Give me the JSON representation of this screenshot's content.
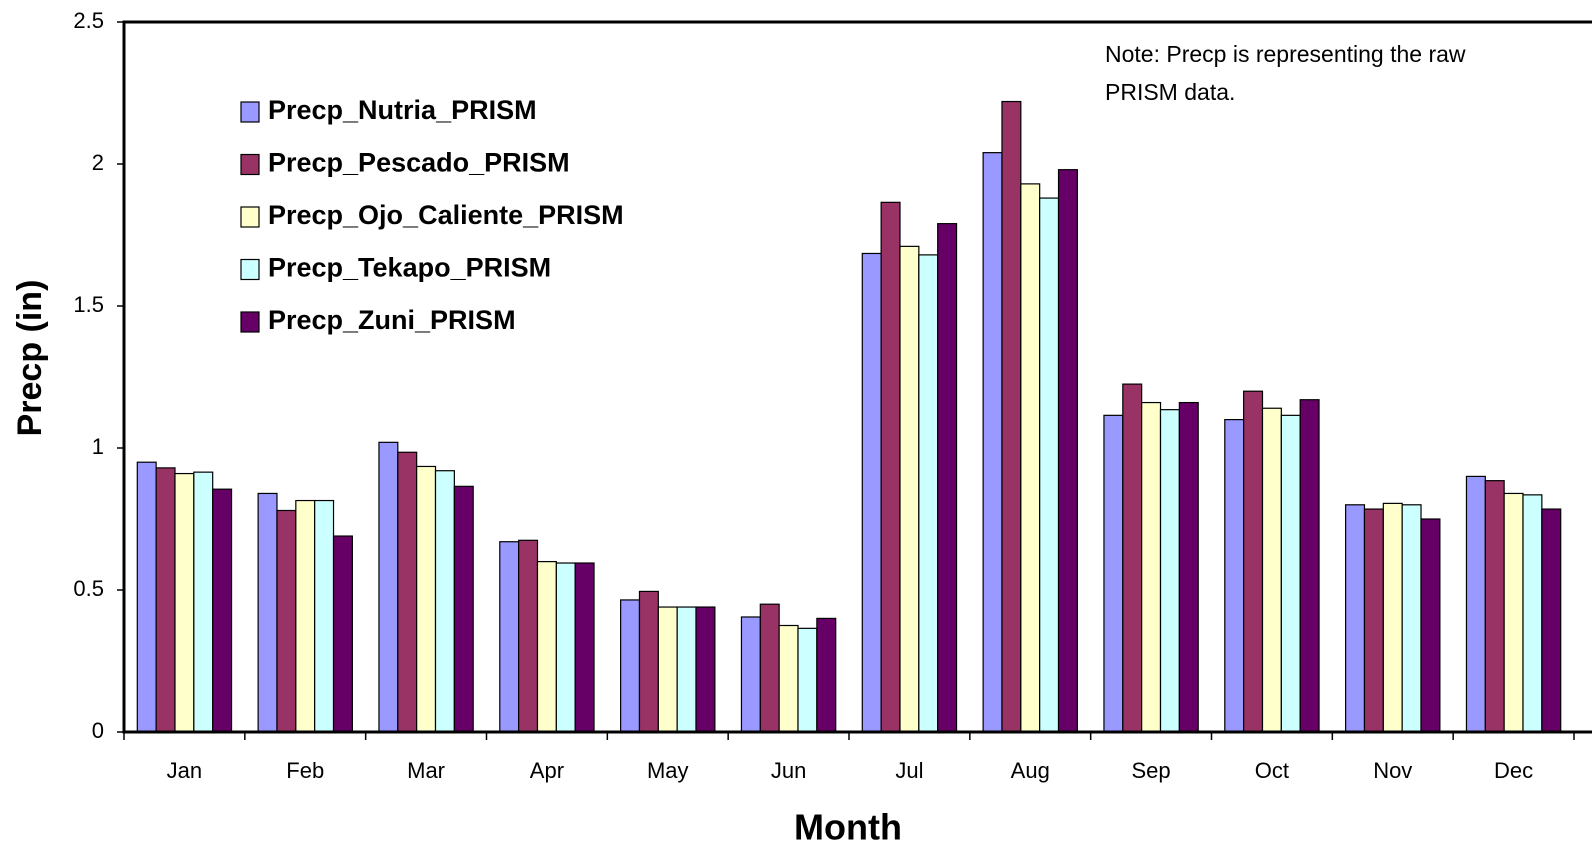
{
  "chart_data": {
    "type": "bar",
    "note": [
      "Note: Precp is representing the raw",
      "PRISM data."
    ],
    "x_label": "Month",
    "y_label": "Precp (in)",
    "categories": [
      "Jan",
      "Feb",
      "Mar",
      "Apr",
      "May",
      "Jun",
      "Jul",
      "Aug",
      "Sep",
      "Oct",
      "Nov",
      "Dec"
    ],
    "series": [
      {
        "name": "Precp_Nutria_PRISM",
        "color": "#9999ff",
        "values": [
          0.95,
          0.84,
          1.02,
          0.67,
          0.465,
          0.405,
          1.685,
          2.04,
          1.115,
          1.1,
          0.8,
          0.9
        ]
      },
      {
        "name": "Precp_Pescado_PRISM",
        "color": "#993366",
        "values": [
          0.93,
          0.78,
          0.985,
          0.675,
          0.495,
          0.45,
          1.865,
          2.22,
          1.225,
          1.2,
          0.785,
          0.885
        ]
      },
      {
        "name": "Precp_Ojo_Caliente_PRISM",
        "color": "#ffffcc",
        "values": [
          0.91,
          0.815,
          0.935,
          0.6,
          0.44,
          0.375,
          1.71,
          1.93,
          1.16,
          1.14,
          0.805,
          0.84
        ]
      },
      {
        "name": "Precp_Tekapo_PRISM",
        "color": "#ccffff",
        "values": [
          0.915,
          0.815,
          0.92,
          0.595,
          0.44,
          0.365,
          1.68,
          1.88,
          1.135,
          1.115,
          0.8,
          0.835
        ]
      },
      {
        "name": "Precp_Zuni_PRISM",
        "color": "#660066",
        "values": [
          0.855,
          0.69,
          0.865,
          0.595,
          0.44,
          0.4,
          1.79,
          1.98,
          1.16,
          1.17,
          0.75,
          0.785
        ]
      }
    ],
    "ylim": [
      0,
      2.5
    ],
    "yticks": [
      0,
      0.5,
      1,
      1.5,
      2,
      2.5
    ],
    "grid": false,
    "legend": "upper-left"
  }
}
